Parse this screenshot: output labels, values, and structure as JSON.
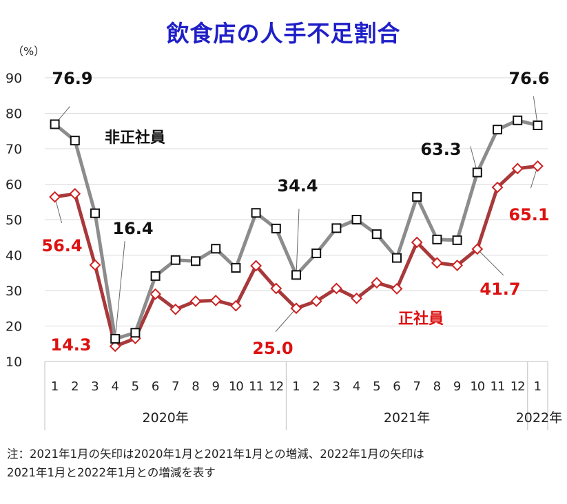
{
  "chart_data": {
    "type": "line",
    "title": "飲食店の人手不足割合",
    "y_unit": "（%）",
    "ylim": [
      10,
      90
    ],
    "yticks": [
      "10",
      "20",
      "30",
      "40",
      "50",
      "60",
      "70",
      "80",
      "90"
    ],
    "month_labels": [
      "1",
      "2",
      "3",
      "4",
      "5",
      "6",
      "7",
      "8",
      "9",
      "10",
      "11",
      "12",
      "1",
      "2",
      "3",
      "4",
      "5",
      "6",
      "7",
      "8",
      "9",
      "10",
      "11",
      "12",
      "1"
    ],
    "year_groups": [
      {
        "label": "2020年",
        "start": 0,
        "end": 11
      },
      {
        "label": "2021年",
        "start": 12,
        "end": 23
      },
      {
        "label": "2022年",
        "start": 24,
        "end": 24
      }
    ],
    "grid": true,
    "series": [
      {
        "name": "非正社員",
        "color": "#8c8c8c",
        "marker": "square",
        "marker_edge": "#111111",
        "values": [
          76.9,
          72.3,
          51.8,
          16.4,
          18.1,
          34.1,
          38.6,
          38.3,
          41.8,
          36.4,
          51.9,
          47.5,
          34.4,
          40.5,
          47.6,
          50.0,
          45.9,
          39.2,
          56.4,
          44.4,
          44.2,
          63.3,
          75.4,
          78.0,
          76.6
        ]
      },
      {
        "name": "正社員",
        "color": "#a8393b",
        "marker": "diamond",
        "marker_edge": "#cc2222",
        "values": [
          56.4,
          57.3,
          37.2,
          14.3,
          16.5,
          29.0,
          24.7,
          27.0,
          27.2,
          25.7,
          37.0,
          30.6,
          25.0,
          27.0,
          30.6,
          27.8,
          32.2,
          30.5,
          43.6,
          37.8,
          37.1,
          41.7,
          59.1,
          64.4,
          65.1
        ]
      }
    ],
    "data_labels": [
      {
        "series": 0,
        "index": 0,
        "text": "76.9"
      },
      {
        "series": 0,
        "index": 3,
        "text": "16.4"
      },
      {
        "series": 0,
        "index": 12,
        "text": "34.4"
      },
      {
        "series": 0,
        "index": 21,
        "text": "63.3"
      },
      {
        "series": 0,
        "index": 24,
        "text": "76.6"
      },
      {
        "series": 1,
        "index": 0,
        "text": "56.4"
      },
      {
        "series": 1,
        "index": 3,
        "text": "14.3"
      },
      {
        "series": 1,
        "index": 12,
        "text": "25.0"
      },
      {
        "series": 1,
        "index": 21,
        "text": "41.7"
      },
      {
        "series": 1,
        "index": 24,
        "text": "65.1"
      }
    ],
    "series_labels": [
      "非正社員",
      "正社員"
    ],
    "note_lines": [
      "注：2021年1月の矢印は2020年1月と2021年1月との増減、2022年1月の矢印は",
      "2021年1月と2022年1月との増減を表す"
    ]
  }
}
